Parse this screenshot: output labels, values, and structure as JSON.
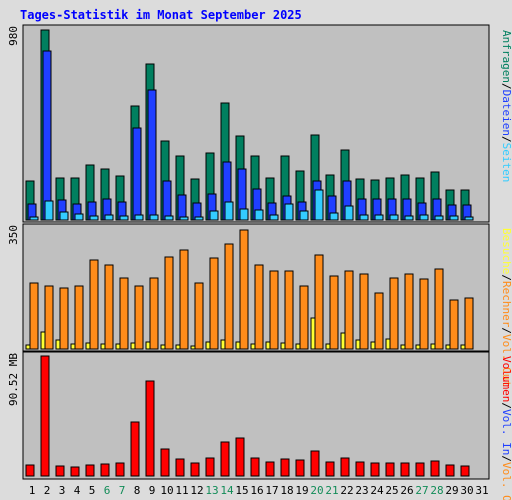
{
  "title": "Tages-Statistik im Monat September 2025",
  "colors": {
    "background": "#dcdcdc",
    "panel": "#c0c0c0",
    "title": "#0000ff",
    "anfragen": "#007f5f",
    "dateien": "#1f3fff",
    "seiten": "#33ccff",
    "besuche": "#ffff33",
    "kbout": "#ff8c1a",
    "volumen": "#ff0000",
    "weekday": "#000000",
    "weekend": "#128c58"
  },
  "chart_data": [
    {
      "type": "bar",
      "panel": "top",
      "ymax_label": "980",
      "ylim": [
        0,
        980
      ],
      "categories": [
        "1",
        "2",
        "3",
        "4",
        "5",
        "6",
        "7",
        "8",
        "9",
        "10",
        "11",
        "12",
        "13",
        "14",
        "15",
        "16",
        "17",
        "18",
        "19",
        "20",
        "21",
        "22",
        "23",
        "24",
        "25",
        "26",
        "27",
        "28",
        "29",
        "30",
        "31"
      ],
      "legend": [
        "Anfragen",
        "/",
        "Dateien",
        "/",
        "Seiten"
      ],
      "series": [
        {
          "name": "Anfragen",
          "color_key": "anfragen",
          "values": [
            200,
            980,
            215,
            215,
            285,
            265,
            225,
            590,
            805,
            405,
            330,
            210,
            345,
            605,
            435,
            330,
            215,
            330,
            255,
            440,
            230,
            360,
            210,
            205,
            215,
            230,
            215,
            245,
            155,
            155,
            0
          ]
        },
        {
          "name": "Dateien",
          "color_key": "dateien",
          "values": [
            85,
            870,
            105,
            85,
            95,
            110,
            95,
            475,
            670,
            200,
            130,
            90,
            135,
            300,
            265,
            160,
            90,
            125,
            95,
            200,
            125,
            200,
            110,
            110,
            110,
            110,
            90,
            110,
            75,
            75,
            0
          ]
        },
        {
          "name": "Seiten",
          "color_key": "seiten",
          "values": [
            15,
            100,
            40,
            30,
            20,
            25,
            20,
            25,
            25,
            20,
            15,
            15,
            45,
            95,
            55,
            50,
            25,
            85,
            45,
            155,
            35,
            70,
            25,
            25,
            25,
            20,
            25,
            20,
            20,
            15,
            0
          ]
        }
      ]
    },
    {
      "type": "bar",
      "panel": "middle",
      "ymax_label": "350",
      "ylim": [
        0,
        350
      ],
      "categories": [
        "1",
        "2",
        "3",
        "4",
        "5",
        "6",
        "7",
        "8",
        "9",
        "10",
        "11",
        "12",
        "13",
        "14",
        "15",
        "16",
        "17",
        "18",
        "19",
        "20",
        "21",
        "22",
        "23",
        "24",
        "25",
        "26",
        "27",
        "28",
        "29",
        "30",
        "31"
      ],
      "legend": [
        "Besuche",
        "/",
        "Rechner",
        "/",
        "Vol. Out"
      ],
      "series": [
        {
          "name": "Besuche",
          "color_key": "besuche",
          "values": [
            12,
            50,
            25,
            15,
            18,
            15,
            15,
            18,
            20,
            12,
            12,
            10,
            20,
            25,
            20,
            15,
            20,
            18,
            15,
            90,
            15,
            45,
            25,
            20,
            28,
            12,
            12,
            15,
            12,
            12,
            0
          ]
        },
        {
          "name": "Vol. Out",
          "color_key": "kbout",
          "values": [
            190,
            180,
            175,
            180,
            255,
            240,
            205,
            180,
            205,
            265,
            285,
            190,
            260,
            300,
            340,
            240,
            225,
            225,
            180,
            270,
            210,
            225,
            215,
            160,
            205,
            215,
            200,
            230,
            140,
            145,
            0
          ]
        }
      ]
    },
    {
      "type": "bar",
      "panel": "bottom",
      "ymax_label": "90.52 MB",
      "ylim": [
        0,
        90.52
      ],
      "categories": [
        "1",
        "2",
        "3",
        "4",
        "5",
        "6",
        "7",
        "8",
        "9",
        "10",
        "11",
        "12",
        "13",
        "14",
        "15",
        "16",
        "17",
        "18",
        "19",
        "20",
        "21",
        "22",
        "23",
        "24",
        "25",
        "26",
        "27",
        "28",
        "29",
        "30",
        "31"
      ],
      "legend": [
        "Volumen",
        "/",
        "Vol. In",
        "/",
        "Vol. Out"
      ],
      "series": [
        {
          "name": "Volumen",
          "color_key": "volumen",
          "values": [
            8.5,
            90.52,
            7.5,
            7,
            8.5,
            9,
            10,
            40.5,
            71.5,
            20,
            12.5,
            10,
            13.5,
            26,
            28.5,
            13.5,
            10.5,
            12.5,
            12,
            18.5,
            10.5,
            13.5,
            10.5,
            10,
            10,
            9.5,
            10,
            11,
            8,
            7.5,
            0
          ]
        }
      ]
    }
  ],
  "weekend_days": [
    6,
    7,
    13,
    14,
    20,
    21,
    27,
    28
  ]
}
